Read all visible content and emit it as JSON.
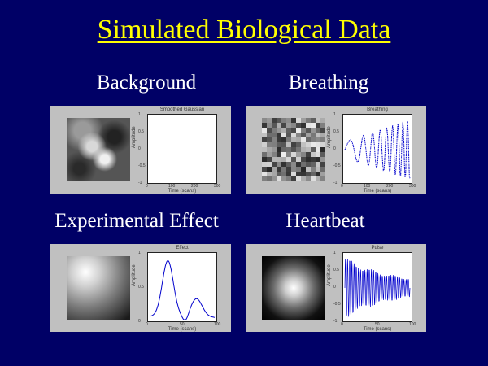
{
  "title": "Simulated Biological Data",
  "colors": {
    "background": "#000066",
    "title": "#ffff00",
    "label": "#ffffff",
    "panel": "#c0c0c0",
    "trace": "#0000cc"
  },
  "quadrants": [
    {
      "label": "Background",
      "plot_title": "Smoothed Gaussian",
      "xlabel": "Time (scans)",
      "ylabel": "Amplitude",
      "yticks": [
        "1",
        "0.5",
        "0",
        "-0.5",
        "-1"
      ],
      "xticks": [
        "0",
        "100",
        "200",
        "300"
      ]
    },
    {
      "label": "Breathing",
      "plot_title": "Breathing",
      "xlabel": "Time (scans)",
      "ylabel": "Amplitude",
      "yticks": [
        "1",
        "0.5",
        "0",
        "-0.5",
        "-1"
      ],
      "xticks": [
        "0",
        "100",
        "200",
        "300"
      ]
    },
    {
      "label": "Experimental Effect",
      "plot_title": "Effect",
      "xlabel": "Time (scans)",
      "ylabel": "Amplitude",
      "yticks": [
        "1",
        "0.5",
        "0"
      ],
      "xticks": [
        "0",
        "50",
        "100"
      ]
    },
    {
      "label": "Heartbeat",
      "plot_title": "Pulse",
      "xlabel": "Time (scans)",
      "ylabel": "Amplitude",
      "yticks": [
        "1",
        "0.5",
        "0",
        "-0.5",
        "-1"
      ],
      "xticks": [
        "0",
        "50",
        "100"
      ]
    }
  ]
}
